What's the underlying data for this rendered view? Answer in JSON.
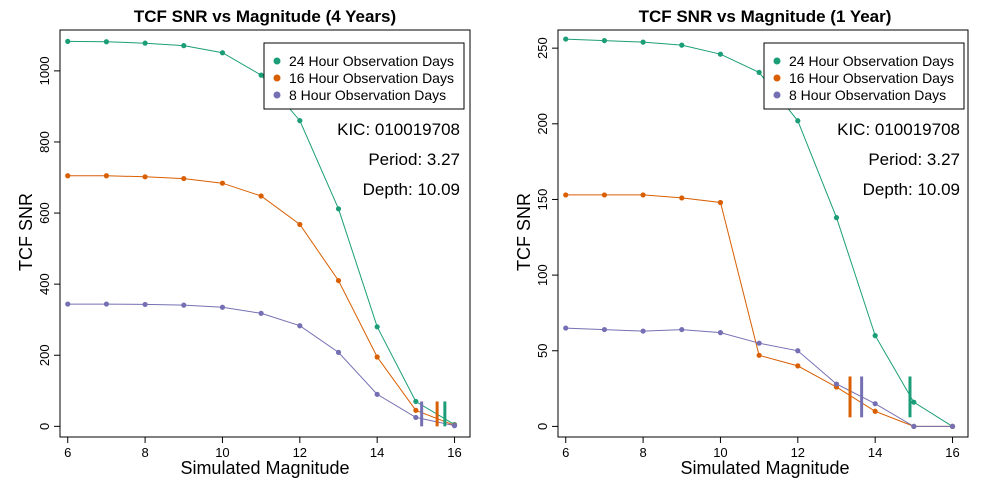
{
  "colors": {
    "s24": "#1b9e77",
    "s16": "#d95f02",
    "s8": "#7570b3"
  },
  "chart_data": [
    {
      "type": "line",
      "title": "TCF SNR vs Magnitude (4 Years)",
      "xlabel": "Simulated Magnitude",
      "ylabel": "TCF SNR",
      "xlim": [
        5.8,
        16.4
      ],
      "ylim": [
        -30,
        1115
      ],
      "xticks": [
        6,
        8,
        10,
        12,
        14,
        16
      ],
      "yticks": [
        0,
        200,
        400,
        600,
        800,
        1000
      ],
      "x": [
        6,
        7,
        8,
        9,
        10,
        11,
        12,
        13,
        14,
        15,
        16
      ],
      "series": [
        {
          "name": "24 Hour Observation Days",
          "colorKey": "s24",
          "values": [
            1083,
            1082,
            1078,
            1071,
            1051,
            988,
            860,
            612,
            280,
            70,
            5
          ]
        },
        {
          "name": "16 Hour Observation Days",
          "colorKey": "s16",
          "values": [
            705,
            705,
            702,
            697,
            684,
            648,
            568,
            410,
            195,
            45,
            3
          ]
        },
        {
          "name": "8 Hour Observation Days",
          "colorKey": "s8",
          "values": [
            344,
            344,
            343,
            341,
            335,
            318,
            283,
            208,
            90,
            25,
            2
          ]
        }
      ],
      "thresholds": [
        {
          "colorKey": "s8",
          "x": 15.15,
          "y": [
            0,
            70
          ]
        },
        {
          "colorKey": "s16",
          "x": 15.55,
          "y": [
            0,
            70
          ]
        },
        {
          "colorKey": "s24",
          "x": 15.75,
          "y": [
            0,
            70
          ]
        }
      ],
      "legend": "top-right",
      "annotations": [
        "KIC: 010019708",
        "Period: 3.27",
        "Depth: 10.09"
      ]
    },
    {
      "type": "line",
      "title": "TCF SNR vs Magnitude (1 Year)",
      "xlabel": "Simulated Magnitude",
      "ylabel": "TCF SNR",
      "xlim": [
        5.8,
        16.4
      ],
      "ylim": [
        -7,
        262
      ],
      "xticks": [
        6,
        8,
        10,
        12,
        14,
        16
      ],
      "yticks": [
        0,
        50,
        100,
        150,
        200,
        250
      ],
      "x": [
        6,
        7,
        8,
        9,
        10,
        11,
        12,
        13,
        14,
        15,
        16
      ],
      "series": [
        {
          "name": "24 Hour Observation Days",
          "colorKey": "s24",
          "values": [
            256,
            255,
            254,
            252,
            246,
            234,
            202,
            138,
            60,
            16,
            0
          ]
        },
        {
          "name": "16 Hour Observation Days",
          "colorKey": "s16",
          "values": [
            153,
            153,
            153,
            151,
            148,
            47,
            40,
            26,
            10,
            0,
            0
          ]
        },
        {
          "name": "8 Hour Observation Days",
          "colorKey": "s8",
          "values": [
            65,
            64,
            63,
            64,
            62,
            55,
            50,
            28,
            15,
            0,
            0
          ]
        }
      ],
      "thresholds": [
        {
          "colorKey": "s16",
          "x": 13.35,
          "y": [
            6,
            33
          ]
        },
        {
          "colorKey": "s8",
          "x": 13.65,
          "y": [
            6,
            33
          ]
        },
        {
          "colorKey": "s24",
          "x": 14.9,
          "y": [
            6,
            33
          ]
        }
      ],
      "legend": "top-right",
      "annotations": [
        "KIC: 010019708",
        "Period: 3.27",
        "Depth: 10.09"
      ]
    }
  ]
}
